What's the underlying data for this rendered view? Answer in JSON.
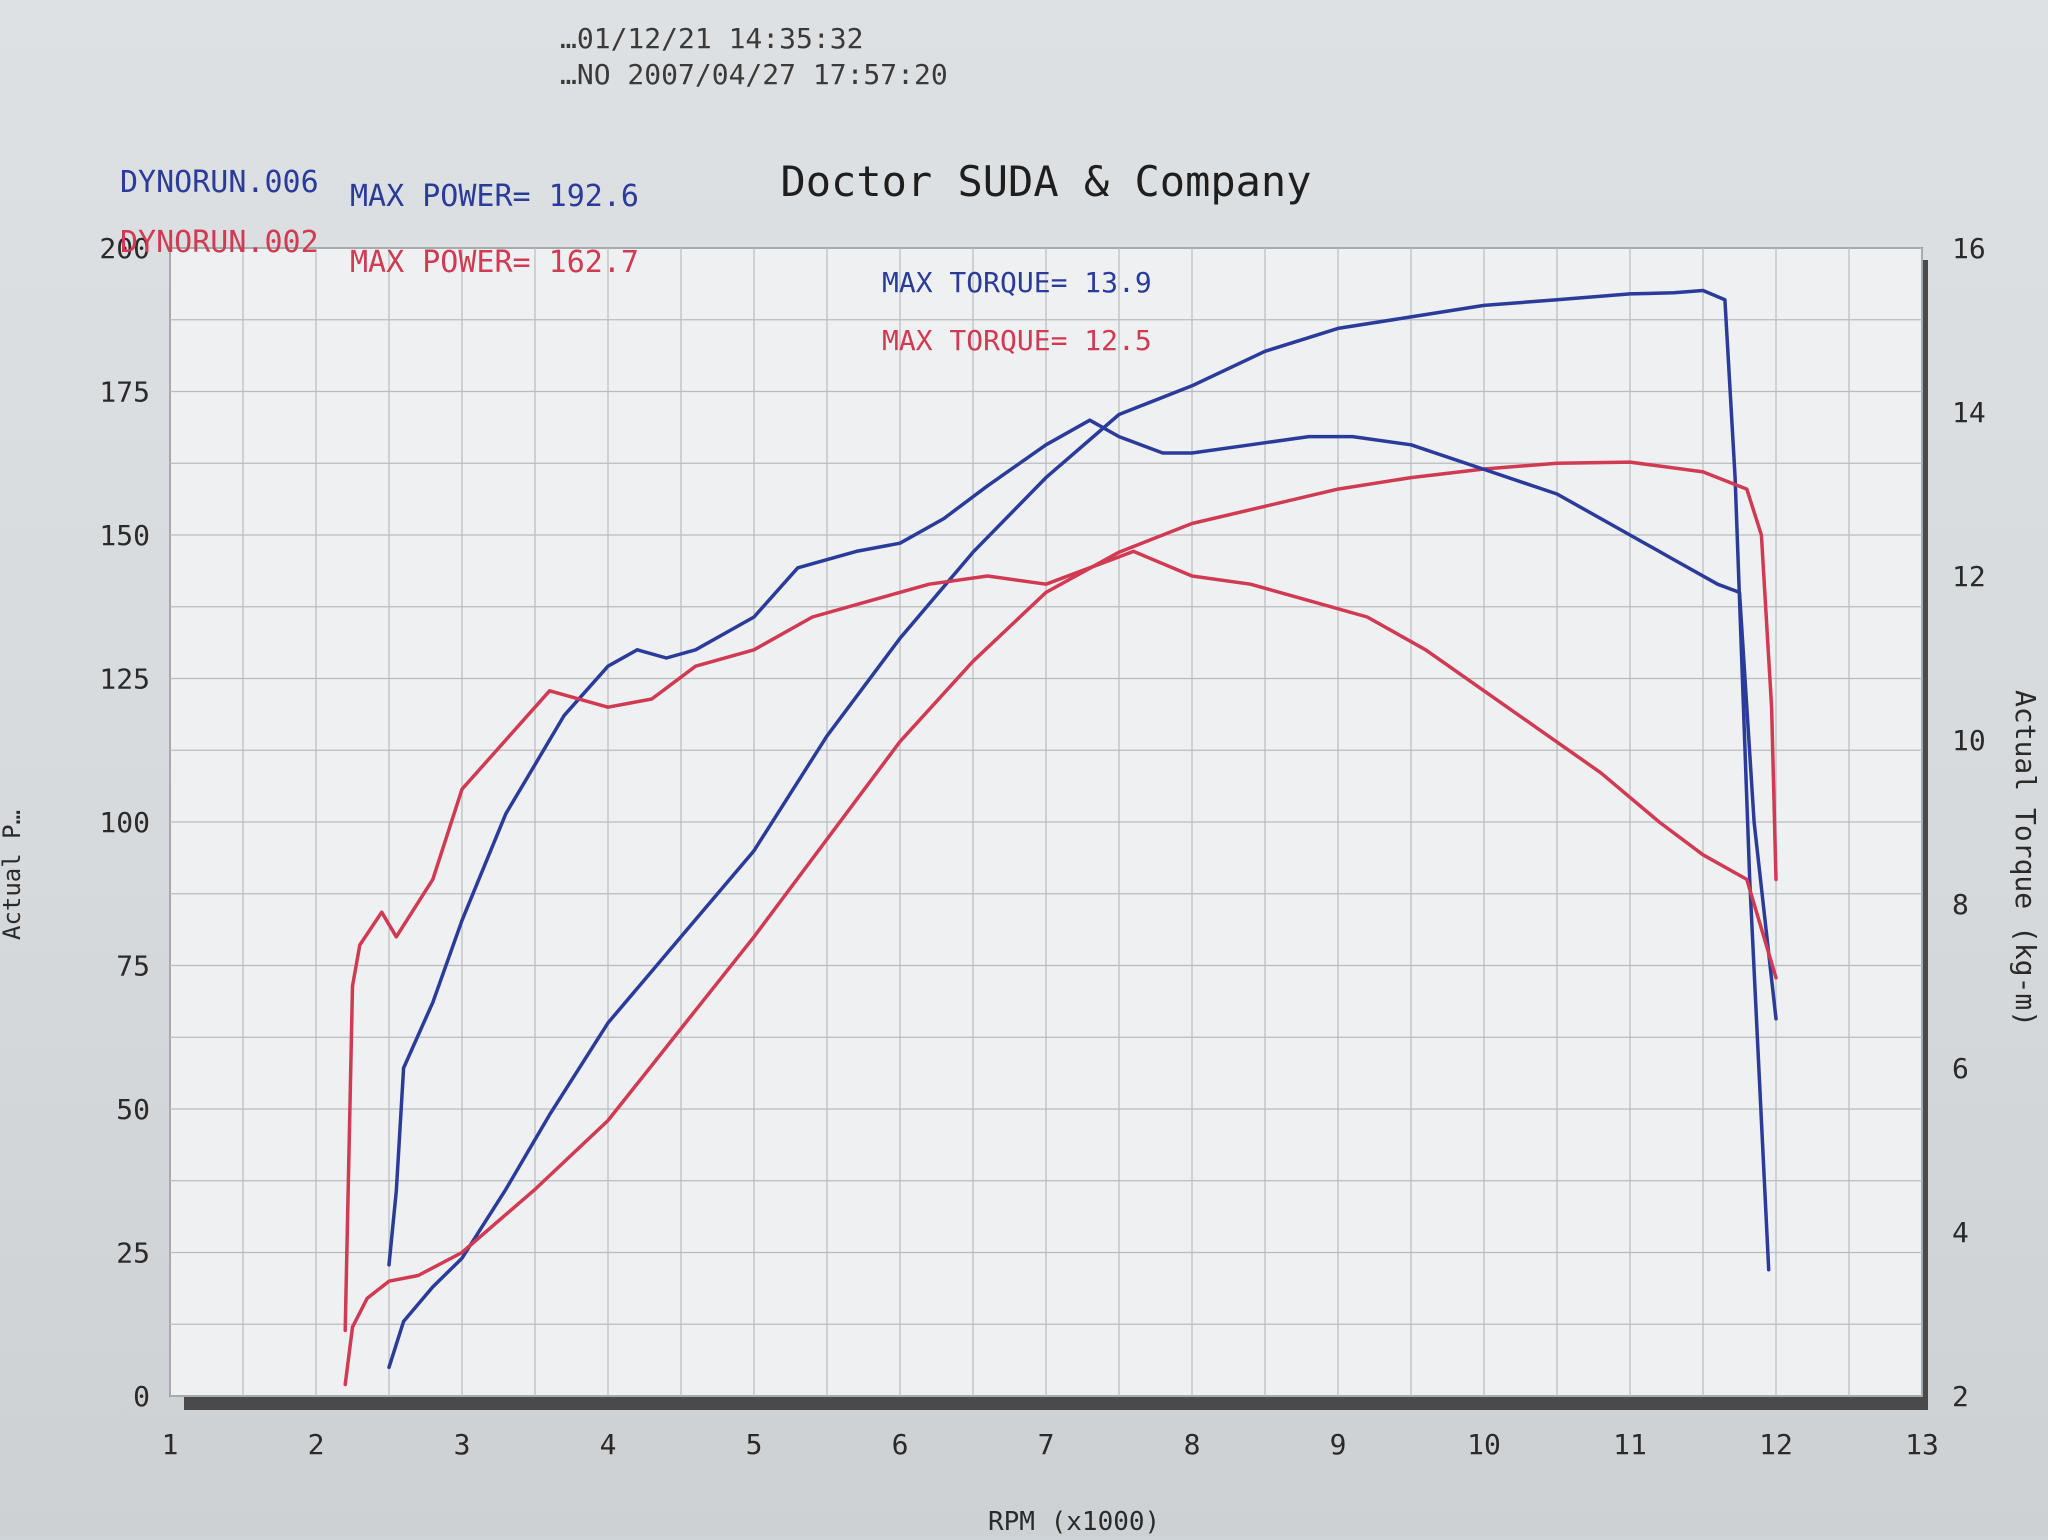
{
  "header": {
    "timestamp_1": "…01/12/21 14:35:32",
    "timestamp_2": "…NO 2007/04/27 17:57:20"
  },
  "chart_data": {
    "type": "line",
    "title": "Doctor SUDA & Company",
    "xlabel": "RPM (x1000)",
    "ylabel_left": "Actual P…",
    "ylabel_right": "Actual Torque (kg-m)",
    "xlim": [
      1,
      13
    ],
    "ylim_left": [
      0,
      200
    ],
    "ylim_right": [
      2,
      16
    ],
    "x_ticks": [
      "1",
      "2",
      "3",
      "4",
      "5",
      "6",
      "7",
      "8",
      "9",
      "10",
      "11",
      "12",
      "13"
    ],
    "y_left_ticks": [
      "0",
      "25",
      "50",
      "75",
      "100",
      "125",
      "150",
      "175",
      "200"
    ],
    "y_right_ticks": [
      "2",
      "4",
      "6",
      "8",
      "10",
      "12",
      "14",
      "16"
    ],
    "grid": true,
    "legend": [
      {
        "run": "DYNORUN.006",
        "max_power": "MAX POWER= 192.6",
        "max_torque": "MAX TORQUE= 13.9",
        "color": "#2b3b9a"
      },
      {
        "run": "DYNORUN.002",
        "max_power": "MAX POWER= 162.7",
        "max_torque": "MAX TORQUE= 12.5",
        "color": "#d03a52"
      }
    ],
    "series": [
      {
        "name": "DYNORUN.006",
        "measure": "power",
        "axis": "left",
        "color": "#2b3b9a",
        "x": [
          2.5,
          2.6,
          2.8,
          3.0,
          3.3,
          3.6,
          4.0,
          4.5,
          5.0,
          5.5,
          6.0,
          6.5,
          7.0,
          7.5,
          8.0,
          8.5,
          9.0,
          9.5,
          10.0,
          10.5,
          11.0,
          11.3,
          11.5,
          11.65,
          11.72,
          11.82,
          11.9,
          11.95
        ],
        "y": [
          5,
          13,
          19,
          24,
          36,
          49,
          65,
          80,
          95,
          115,
          132,
          147,
          160,
          171,
          176,
          182,
          186,
          188,
          190,
          191,
          192,
          192.2,
          192.6,
          191,
          160,
          90,
          48,
          22
        ]
      },
      {
        "name": "DYNORUN.002",
        "measure": "power",
        "axis": "left",
        "color": "#d03a52",
        "x": [
          2.2,
          2.25,
          2.35,
          2.5,
          2.7,
          3.0,
          3.5,
          4.0,
          4.5,
          5.0,
          5.5,
          6.0,
          6.5,
          7.0,
          7.5,
          8.0,
          8.5,
          9.0,
          9.5,
          10.0,
          10.5,
          11.0,
          11.5,
          11.8,
          11.9,
          11.97,
          12.0
        ],
        "y": [
          2,
          12,
          17,
          20,
          21,
          25,
          36,
          48,
          64,
          80,
          97,
          114,
          128,
          140,
          147,
          152,
          155,
          158,
          160,
          161.5,
          162.5,
          162.7,
          161,
          158,
          150,
          120,
          90
        ]
      },
      {
        "name": "DYNORUN.006",
        "measure": "torque",
        "axis": "right",
        "color": "#2b3b9a",
        "x": [
          2.5,
          2.55,
          2.6,
          2.8,
          3.0,
          3.3,
          3.5,
          3.7,
          4.0,
          4.2,
          4.4,
          4.6,
          5.0,
          5.3,
          5.7,
          6.0,
          6.3,
          6.6,
          7.0,
          7.3,
          7.5,
          7.8,
          8.0,
          8.4,
          8.8,
          9.1,
          9.5,
          10.0,
          10.5,
          11.0,
          11.3,
          11.6,
          11.75,
          11.85,
          12.0
        ],
        "y": [
          3.6,
          4.5,
          6.0,
          6.8,
          7.8,
          9.1,
          9.7,
          10.3,
          10.9,
          11.1,
          11.0,
          11.1,
          11.5,
          12.1,
          12.3,
          12.4,
          12.7,
          13.1,
          13.6,
          13.9,
          13.7,
          13.5,
          13.5,
          13.6,
          13.7,
          13.7,
          13.6,
          13.3,
          13.0,
          12.5,
          12.2,
          11.9,
          11.8,
          9.0,
          6.6
        ]
      },
      {
        "name": "DYNORUN.002",
        "measure": "torque",
        "axis": "right",
        "color": "#d03a52",
        "x": [
          2.2,
          2.25,
          2.3,
          2.45,
          2.55,
          2.8,
          3.0,
          3.3,
          3.6,
          4.0,
          4.3,
          4.6,
          5.0,
          5.4,
          5.8,
          6.2,
          6.6,
          7.0,
          7.3,
          7.6,
          8.0,
          8.4,
          8.8,
          9.2,
          9.6,
          10.0,
          10.4,
          10.8,
          11.2,
          11.5,
          11.8,
          12.0
        ],
        "y": [
          2.8,
          7.0,
          7.5,
          7.9,
          7.6,
          8.3,
          9.4,
          10.0,
          10.6,
          10.4,
          10.5,
          10.9,
          11.1,
          11.5,
          11.7,
          11.9,
          12.0,
          11.9,
          12.1,
          12.3,
          12.0,
          11.9,
          11.7,
          11.5,
          11.1,
          10.6,
          10.1,
          9.6,
          9.0,
          8.6,
          8.3,
          7.1
        ]
      }
    ]
  }
}
